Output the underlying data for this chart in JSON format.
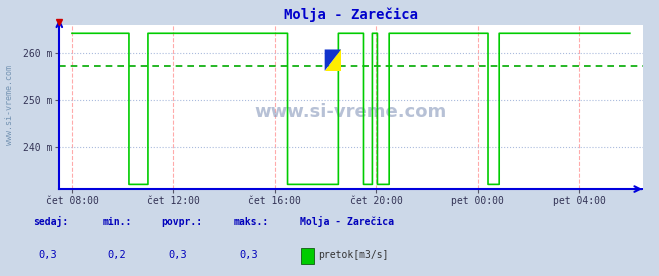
{
  "title": "Molja - Zarečica",
  "fig_bg_color": "#ccd8e8",
  "plot_bg_color": "#ffffff",
  "line_color": "#00cc00",
  "axis_color": "#0000dd",
  "grid_color_v": "#ffaaaa",
  "grid_color_h": "#aabbdd",
  "avg_line_color": "#00aa00",
  "ylim": [
    231.0,
    266.0
  ],
  "avg_value": 257.2,
  "ymax_val": 264.2,
  "ymin_val": 232.0,
  "legend_label": "pretok[m3/s]",
  "station": "Molja - Zarečica",
  "sedaj": "0,3",
  "min_val": "0,2",
  "povpr": "0,3",
  "maks": "0,3",
  "footer_color": "#0000bb",
  "watermark": "www.si-vreme.com",
  "title_color": "#0000cc",
  "total_hours": 22,
  "xtick_hours": [
    0,
    4,
    8,
    12,
    16,
    20
  ],
  "xtick_labels": [
    "čet 08:00",
    "čet 12:00",
    "čet 16:00",
    "čet 20:00",
    "pet 00:00",
    "pet 04:00"
  ],
  "ytick_vals": [
    240,
    250,
    260
  ],
  "ytick_labels": [
    "240 m",
    "250 m",
    "260 m"
  ],
  "watermark_color": "#8899bb",
  "left_label_color": "#6688aa"
}
